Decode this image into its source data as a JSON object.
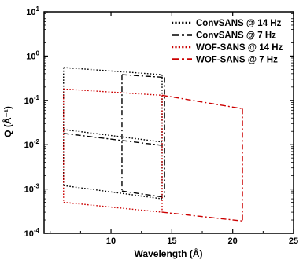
{
  "chart_data": {
    "type": "line",
    "title": "",
    "xlabel": "Wavelength (Å)",
    "ylabel": "Q (Å⁻¹)",
    "xlim": [
      4.5,
      25
    ],
    "ylim_log10": [
      -4,
      1
    ],
    "yscale": "log",
    "grid": false,
    "legend_placement": "top-right",
    "x_ticks": [
      {
        "value": 10,
        "label": "10"
      },
      {
        "value": 15,
        "label": "15"
      },
      {
        "value": 20,
        "label": "20"
      },
      {
        "value": 25,
        "label": "25"
      }
    ],
    "y_ticks": [
      {
        "exp": 1,
        "base": "10",
        "sup": "1"
      },
      {
        "exp": 0,
        "base": "10",
        "sup": "0"
      },
      {
        "exp": -1,
        "base": "10",
        "sup": "-1"
      },
      {
        "exp": -2,
        "base": "10",
        "sup": "-2"
      },
      {
        "exp": -3,
        "base": "10",
        "sup": "-3"
      },
      {
        "exp": -4,
        "base": "10",
        "sup": "-4"
      }
    ],
    "series": [
      {
        "name": "ConvSANS @ 14 Hz",
        "color": "#000000",
        "dash": "dotted",
        "lines": [
          [
            [
              6.1,
              0.55
            ],
            [
              14.2,
              0.38
            ]
          ],
          [
            [
              6.1,
              0.022
            ],
            [
              14.2,
              0.0115
            ]
          ],
          [
            [
              6.1,
              0.0012
            ],
            [
              14.2,
              0.0006
            ]
          ],
          [
            [
              6.1,
              0.55
            ],
            [
              6.1,
              0.0012
            ]
          ],
          [
            [
              14.2,
              0.38
            ],
            [
              14.2,
              0.0006
            ]
          ]
        ]
      },
      {
        "name": "ConvSANS @ 7 Hz",
        "color": "#000000",
        "dash": "dashdot",
        "lines": [
          [
            [
              10.9,
              0.38
            ],
            [
              14.4,
              0.33
            ]
          ],
          [
            [
              6.1,
              0.018
            ],
            [
              14.4,
              0.0095
            ]
          ],
          [
            [
              10.9,
              0.0009
            ],
            [
              14.4,
              0.00065
            ]
          ],
          [
            [
              10.9,
              0.38
            ],
            [
              10.9,
              0.0009
            ]
          ],
          [
            [
              14.4,
              0.33
            ],
            [
              14.4,
              0.00065
            ]
          ]
        ]
      },
      {
        "name": "WOF-SANS @ 14 Hz",
        "color": "#cc0000",
        "dash": "dotted",
        "lines": [
          [
            [
              6.1,
              0.18
            ],
            [
              14.2,
              0.13
            ]
          ],
          [
            [
              6.1,
              0.0005
            ],
            [
              14.2,
              0.0003
            ]
          ],
          [
            [
              6.1,
              0.18
            ],
            [
              6.1,
              0.0005
            ]
          ],
          [
            [
              14.2,
              0.13
            ],
            [
              14.2,
              0.0003
            ]
          ]
        ]
      },
      {
        "name": "WOF-SANS @ 7 Hz",
        "color": "#cc0000",
        "dash": "dashdot",
        "lines": [
          [
            [
              14.2,
              0.13
            ],
            [
              20.8,
              0.065
            ]
          ],
          [
            [
              14.2,
              0.0003
            ],
            [
              20.8,
              0.00019
            ]
          ],
          [
            [
              20.8,
              0.065
            ],
            [
              20.8,
              0.00019
            ]
          ]
        ]
      }
    ]
  }
}
